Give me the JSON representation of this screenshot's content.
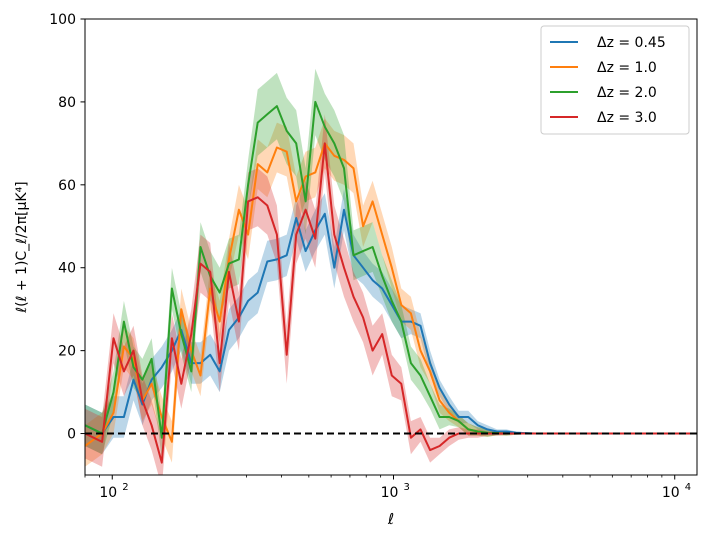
{
  "chart_data": {
    "type": "line",
    "xscale": "log",
    "xlim": [
      80,
      12000
    ],
    "ylim": [
      -10,
      100
    ],
    "xlabel": "ℓ",
    "ylabel": "ℓ(ℓ + 1)C_ℓ/2π[μK⁴]",
    "xticks": [
      {
        "value": 100,
        "label": "10",
        "exp": "2"
      },
      {
        "value": 1000,
        "label": "10",
        "exp": "3"
      },
      {
        "value": 10000,
        "label": "10",
        "exp": "4"
      }
    ],
    "yticks": [
      0,
      20,
      40,
      60,
      80,
      100
    ],
    "legend_position": "top-right",
    "zero_line": {
      "y": 0,
      "style": "dashed",
      "color": "#000000"
    },
    "series": [
      {
        "name": "Δz = 0.45",
        "color": "#1f77b4",
        "x": [
          80,
          92,
          101,
          110,
          119,
          128,
          138,
          150,
          163,
          176,
          191,
          206,
          223,
          241,
          260,
          282,
          304,
          329,
          356,
          385,
          417,
          451,
          487,
          527,
          570,
          616,
          667,
          721,
          780,
          843,
          912,
          986,
          1066,
          1153,
          1247,
          1349,
          1459,
          1578,
          1706,
          1845,
          1995,
          2158,
          2333,
          2523,
          2729,
          2952,
          3192,
          3452,
          3733,
          4037,
          4366,
          4722,
          5106,
          5522,
          5972,
          6458,
          6984,
          7553,
          8168,
          8833,
          9553,
          10331,
          11172,
          12000
        ],
        "y": [
          2,
          0,
          4,
          4,
          13,
          7,
          13,
          16,
          20,
          25,
          17,
          17,
          19,
          15,
          25,
          28,
          32,
          34,
          41.5,
          42,
          43,
          52,
          44,
          49,
          53,
          40,
          54,
          43,
          40,
          37,
          35,
          31,
          27,
          27,
          26,
          17,
          11,
          7,
          4,
          4,
          2,
          1,
          0.5,
          0.5,
          0.2,
          0.1,
          0,
          0,
          0,
          0,
          0,
          0,
          0,
          0,
          0,
          0,
          0,
          0,
          0,
          0,
          0,
          0,
          0,
          0
        ],
        "band": [
          5,
          5,
          5,
          5,
          5,
          5,
          5,
          5,
          5,
          5,
          5,
          5,
          5,
          5,
          5,
          5,
          5,
          5,
          5,
          5,
          5,
          5,
          5,
          5,
          5,
          5,
          5,
          5,
          4,
          4,
          4,
          4,
          4,
          3,
          3,
          3,
          2,
          2,
          1.5,
          1.5,
          1,
          1,
          0.5,
          0.5,
          0.3,
          0.2,
          0.1,
          0.1,
          0.1,
          0.1,
          0.1,
          0.1,
          0.1,
          0.1,
          0.1,
          0.1,
          0.1,
          0.1,
          0.1,
          0.1,
          0.1,
          0.1,
          0.1,
          0.1
        ]
      },
      {
        "name": "Δz = 1.0",
        "color": "#ff7f0e",
        "x": [
          80,
          92,
          101,
          110,
          119,
          128,
          138,
          150,
          163,
          176,
          191,
          206,
          223,
          241,
          260,
          282,
          304,
          329,
          356,
          385,
          417,
          451,
          487,
          527,
          570,
          616,
          667,
          721,
          780,
          843,
          912,
          986,
          1066,
          1153,
          1247,
          1349,
          1459,
          1578,
          1706,
          1845,
          1995,
          2158,
          2333,
          2523,
          2729,
          2952,
          3192,
          3452,
          3733,
          4037,
          4366,
          4722,
          5106,
          5522,
          5972,
          6458,
          6984,
          7553,
          8168,
          8833,
          9553,
          10331,
          11172,
          12000
        ],
        "y": [
          -3,
          0,
          5,
          21,
          18,
          8,
          12,
          4,
          -2,
          30,
          20,
          14,
          35,
          27,
          42,
          54,
          48,
          65,
          63,
          69,
          68,
          56,
          62,
          63,
          70,
          67,
          66,
          64,
          50,
          56,
          48,
          40,
          31,
          29,
          20,
          15,
          8,
          5,
          3,
          1,
          0.5,
          0.2,
          0.1,
          0,
          0,
          0,
          0,
          0,
          0,
          0,
          0,
          0,
          0,
          0,
          0,
          0,
          0,
          0,
          0,
          0,
          0,
          0,
          0,
          0
        ],
        "band": [
          5,
          5,
          5,
          5,
          5,
          5,
          5,
          5,
          5,
          5,
          5,
          5,
          5,
          5,
          5,
          6,
          6,
          6,
          6,
          6,
          6,
          6,
          6,
          6,
          6,
          6,
          6,
          6,
          5,
          5,
          5,
          5,
          4,
          4,
          4,
          3,
          3,
          2,
          1.5,
          1.5,
          1,
          1,
          0.5,
          0.5,
          0.3,
          0.2,
          0.1,
          0.1,
          0.1,
          0.1,
          0.1,
          0.1,
          0.1,
          0.1,
          0.1,
          0.1,
          0.1,
          0.1,
          0.1,
          0.1,
          0.1,
          0.1,
          0.1,
          0.1
        ]
      },
      {
        "name": "Δz = 2.0",
        "color": "#2ca02c",
        "x": [
          80,
          92,
          101,
          110,
          119,
          128,
          138,
          150,
          163,
          176,
          191,
          206,
          223,
          241,
          260,
          282,
          304,
          329,
          356,
          385,
          417,
          451,
          487,
          527,
          570,
          616,
          667,
          721,
          780,
          843,
          912,
          986,
          1066,
          1153,
          1247,
          1349,
          1459,
          1578,
          1706,
          1845,
          1995,
          2158,
          2333,
          2523,
          2729,
          2952,
          3192,
          3452,
          3733,
          4037,
          4366,
          4722,
          5106,
          5522,
          5972,
          6458,
          6984,
          7553,
          8168,
          8833,
          9553,
          10331,
          11172,
          12000
        ],
        "y": [
          2,
          0,
          10,
          27,
          16,
          13,
          18,
          -1,
          35,
          24,
          15,
          45,
          38,
          34,
          41,
          42,
          60,
          75,
          77,
          79,
          73,
          70,
          56,
          80,
          74,
          70,
          64,
          43,
          44,
          45,
          38,
          32,
          27,
          17,
          14,
          9,
          4,
          4,
          3,
          1,
          0.5,
          0.2,
          0.1,
          0,
          0,
          0,
          0,
          0,
          0,
          0,
          0,
          0,
          0,
          0,
          0,
          0,
          0,
          0,
          0,
          0,
          0,
          0,
          0,
          0
        ],
        "band": [
          5,
          5,
          5,
          5,
          5,
          5,
          5,
          5,
          5,
          5,
          5,
          6,
          6,
          6,
          6,
          6,
          6,
          8,
          8,
          8,
          8,
          8,
          8,
          8,
          8,
          8,
          8,
          6,
          6,
          6,
          5,
          5,
          4,
          4,
          4,
          3,
          3,
          2,
          1.5,
          1.5,
          1,
          1,
          0.5,
          0.5,
          0.3,
          0.2,
          0.1,
          0.1,
          0.1,
          0.1,
          0.1,
          0.1,
          0.1,
          0.1,
          0.1,
          0.1,
          0.1,
          0.1,
          0.1,
          0.1,
          0.1,
          0.1,
          0.1,
          0.1
        ]
      },
      {
        "name": "Δz = 3.0",
        "color": "#d62728",
        "x": [
          80,
          92,
          101,
          110,
          119,
          128,
          138,
          150,
          163,
          176,
          191,
          206,
          223,
          241,
          260,
          282,
          304,
          329,
          356,
          385,
          417,
          451,
          487,
          527,
          570,
          616,
          667,
          721,
          780,
          843,
          912,
          986,
          1066,
          1153,
          1247,
          1349,
          1459,
          1578,
          1706,
          1845,
          1995,
          2158,
          2333,
          2523,
          2729,
          2952,
          3192,
          3452,
          3733,
          4037,
          4366,
          4722,
          5106,
          5522,
          5972,
          6458,
          6984,
          7553,
          8168,
          8833,
          9553,
          10331,
          11172,
          12000
        ],
        "y": [
          0,
          -2,
          23,
          15,
          20,
          8,
          2,
          -7,
          23,
          12,
          24,
          41,
          39,
          17,
          39,
          27,
          56,
          57,
          55,
          48,
          19,
          48,
          54,
          47,
          70,
          48,
          40,
          33,
          28,
          20,
          24,
          14,
          12,
          -1,
          1,
          -4,
          -3,
          -1,
          0,
          0,
          0,
          0,
          0,
          0,
          0,
          0,
          0,
          0,
          0,
          0,
          0,
          0,
          0,
          0,
          0,
          0,
          0,
          0,
          0,
          0,
          0,
          0,
          0,
          0
        ],
        "band": [
          6,
          6,
          6,
          6,
          6,
          6,
          6,
          6,
          6,
          6,
          6,
          7,
          7,
          7,
          7,
          7,
          7,
          7,
          7,
          7,
          7,
          7,
          7,
          7,
          7,
          7,
          7,
          6,
          6,
          6,
          5,
          5,
          4,
          4,
          3,
          3,
          2,
          2,
          1.5,
          1,
          1,
          0.5,
          0.5,
          0.3,
          0.3,
          0.2,
          0.1,
          0.1,
          0.1,
          0.1,
          0.1,
          0.1,
          0.1,
          0.1,
          0.1,
          0.1,
          0.1,
          0.1,
          0.1,
          0.1,
          0.1,
          0.1,
          0.1,
          0.1
        ]
      }
    ]
  }
}
